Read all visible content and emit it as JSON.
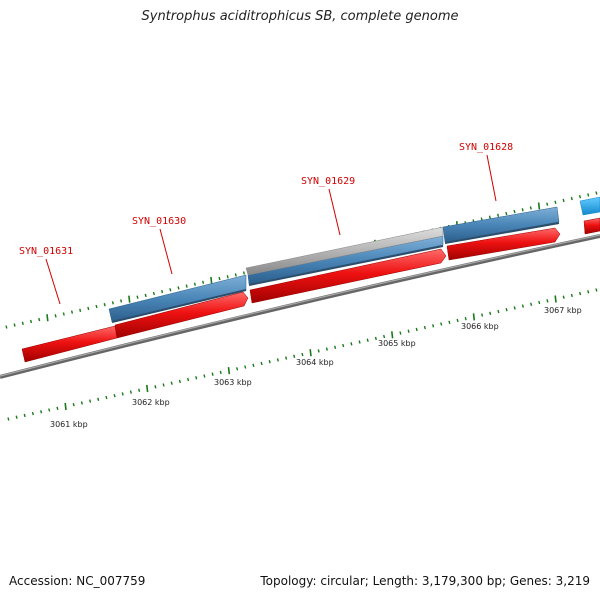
{
  "title": "Syntrophus aciditrophicus SB, complete genome",
  "footer": {
    "accession": "Accession: NC_007759",
    "summary": "Topology: circular; Length: 3,179,300 bp; Genes: 3,219"
  },
  "colors": {
    "forward_gene": "#ee1111",
    "reverse_gene": "#4a86b8",
    "pseudo_gene": "#b4b4b4",
    "highlight_gene": "#22aaee",
    "backbone": "#777777",
    "tick": "#1a7a1a",
    "label": "#d00000"
  },
  "genes": [
    {
      "name": "SYN_01631",
      "strand": "forward",
      "labeled": true
    },
    {
      "name": "SYN_01630",
      "strand": "reverse",
      "labeled": true
    },
    {
      "name": "SYN_01629",
      "strand": "reverse",
      "labeled": true
    },
    {
      "name": "SYN_01628",
      "strand": "reverse",
      "labeled": true
    }
  ],
  "scale": {
    "labels": [
      "3061 kbp",
      "3062 kbp",
      "3063 kbp",
      "3064 kbp",
      "3065 kbp",
      "3066 kbp",
      "3067 kbp"
    ]
  }
}
